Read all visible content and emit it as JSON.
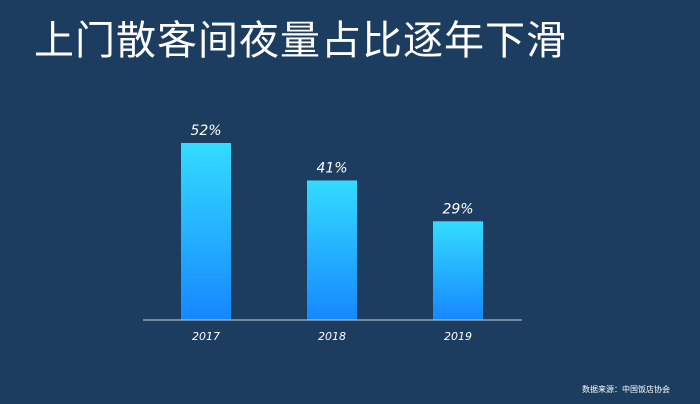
{
  "title": "上门散客间夜量占比逐年下滑",
  "source": "数据来源：中国饭店协会",
  "colors": {
    "background": "#1c3d5f",
    "bar_top": "#33dcff",
    "bar_bottom": "#1687ff",
    "text": "#ffffff"
  },
  "chart_data": {
    "type": "bar",
    "title": "上门散客间夜量占比逐年下滑",
    "categories": [
      "2017",
      "2018",
      "2019"
    ],
    "values": [
      52,
      41,
      29
    ],
    "data_labels": [
      "52%",
      "41%",
      "29%"
    ],
    "xlabel": "",
    "ylabel": "",
    "ylim": [
      0,
      60
    ],
    "grid": false,
    "y_axis_visible": false
  }
}
